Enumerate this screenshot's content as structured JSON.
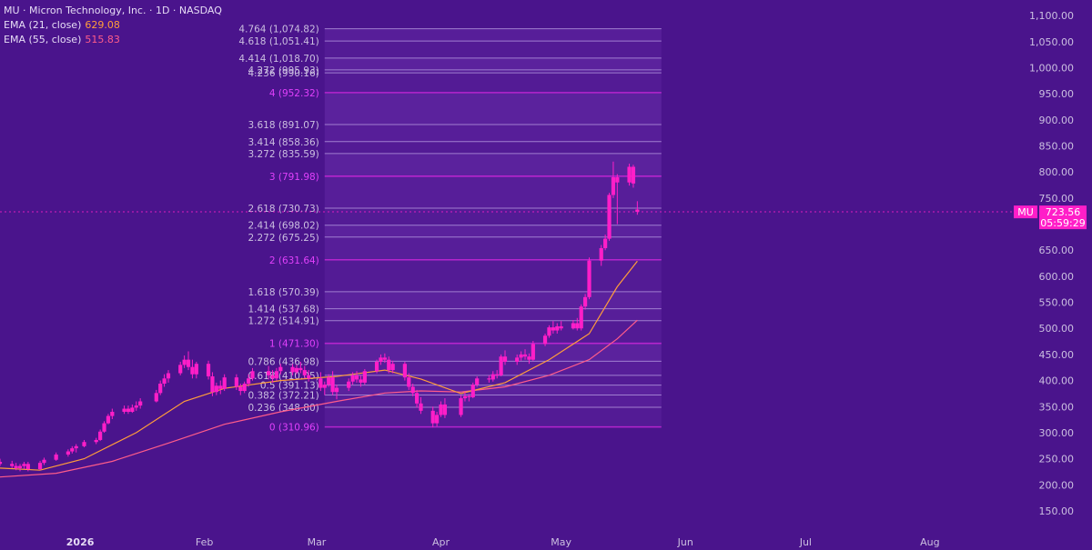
{
  "legend": {
    "symbol_line": "MU · Micron Technology, Inc. · 1D · NASDAQ",
    "ema21_label": "EMA (21, close)",
    "ema21_value": "629.08",
    "ema55_label": "EMA (55, close)",
    "ema55_value": "515.83"
  },
  "price_label": {
    "symbol": "MU",
    "price": "723.56",
    "countdown": "05:59:29"
  },
  "colors": {
    "background": "#4a148c",
    "candle": "#ff1ec8",
    "ema21": "#ff9d3b",
    "ema55": "#ff5c8a",
    "fib_line": "#a98ad6",
    "fib_key_line": "#c026d3",
    "fib_zone": "#6c2fae",
    "axis_text": "#cbbfe0"
  },
  "chart_data": {
    "type": "candlestick",
    "title": "MU · Micron Technology, Inc. · 1D · NASDAQ",
    "y_ticks": [
      150,
      200,
      250,
      300,
      350,
      400,
      450,
      500,
      550,
      600,
      650,
      700,
      750,
      800,
      850,
      900,
      950,
      1000,
      1050,
      1100
    ],
    "y_tick_labels": [
      "150.00",
      "200.00",
      "250.00",
      "300.00",
      "350.00",
      "400.00",
      "450.00",
      "500.00",
      "550.00",
      "600.00",
      "650.00",
      "700.00",
      "750.00",
      "800.00",
      "850.00",
      "900.00",
      "950.00",
      "1,000.00",
      "1,050.00",
      "1,100.00"
    ],
    "ylim": [
      115,
      1130
    ],
    "x_ticks": [
      {
        "label": "2026",
        "date": "2026-01-01",
        "bold": true
      },
      {
        "label": "Feb",
        "date": "2026-02-01",
        "bold": false
      },
      {
        "label": "Mar",
        "date": "2026-03-01",
        "bold": false
      },
      {
        "label": "Apr",
        "date": "2026-04-01",
        "bold": false
      },
      {
        "label": "May",
        "date": "2026-05-01",
        "bold": false
      },
      {
        "label": "Jun",
        "date": "2026-06-01",
        "bold": false
      },
      {
        "label": "Jul",
        "date": "2026-07-01",
        "bold": false
      },
      {
        "label": "Aug",
        "date": "2026-08-01",
        "bold": false
      }
    ],
    "xlim": [
      "2025-12-12",
      "2026-08-21"
    ],
    "last_price": 723.56,
    "fib": {
      "start_date": "2026-03-03",
      "end_date": "2026-05-26",
      "levels": [
        {
          "ratio": 0,
          "price": 310.96,
          "label": "0 (310.96)",
          "key": true
        },
        {
          "ratio": 0.236,
          "price": 348.8,
          "label": "0.236 (348.80)",
          "key": false
        },
        {
          "ratio": 0.382,
          "price": 372.21,
          "label": "0.382 (372.21)",
          "key": false
        },
        {
          "ratio": 0.5,
          "price": 391.13,
          "label": "0.5 (391.13)",
          "key": false
        },
        {
          "ratio": 0.618,
          "price": 410.05,
          "label": "0.618 (410.05)",
          "key": false
        },
        {
          "ratio": 0.786,
          "price": 436.98,
          "label": "0.786 (436.98)",
          "key": false
        },
        {
          "ratio": 1,
          "price": 471.3,
          "label": "1 (471.30)",
          "key": true
        },
        {
          "ratio": 1.272,
          "price": 514.91,
          "label": "1.272 (514.91)",
          "key": false
        },
        {
          "ratio": 1.414,
          "price": 537.68,
          "label": "1.414 (537.68)",
          "key": false
        },
        {
          "ratio": 1.618,
          "price": 570.39,
          "label": "1.618 (570.39)",
          "key": false
        },
        {
          "ratio": 2,
          "price": 631.64,
          "label": "2 (631.64)",
          "key": true
        },
        {
          "ratio": 2.272,
          "price": 675.25,
          "label": "2.272 (675.25)",
          "key": false
        },
        {
          "ratio": 2.414,
          "price": 698.02,
          "label": "2.414 (698.02)",
          "key": false
        },
        {
          "ratio": 2.618,
          "price": 730.73,
          "label": "2.618 (730.73)",
          "key": false
        },
        {
          "ratio": 3,
          "price": 791.98,
          "label": "3 (791.98)",
          "key": true
        },
        {
          "ratio": 3.272,
          "price": 835.59,
          "label": "3.272 (835.59)",
          "key": false
        },
        {
          "ratio": 3.414,
          "price": 858.36,
          "label": "3.414 (858.36)",
          "key": false
        },
        {
          "ratio": 3.618,
          "price": 891.07,
          "label": "3.618 (891.07)",
          "key": false
        },
        {
          "ratio": 4,
          "price": 952.32,
          "label": "4 (952.32)",
          "key": true
        },
        {
          "ratio": 4.236,
          "price": 990.16,
          "label": "4.236 (990.16)",
          "key": false
        },
        {
          "ratio": 4.272,
          "price": 995.93,
          "label": "4.272 (995.93)",
          "key": false
        },
        {
          "ratio": 4.414,
          "price": 1018.7,
          "label": "4.414 (1,018.70)",
          "key": false
        },
        {
          "ratio": 4.618,
          "price": 1051.41,
          "label": "4.618 (1,051.41)",
          "key": false
        },
        {
          "ratio": 4.764,
          "price": 1074.82,
          "label": "4.764 (1,074.82)",
          "key": false
        }
      ]
    },
    "candles": [
      {
        "d": "2025-12-12",
        "o": 244,
        "h": 250,
        "l": 236,
        "c": 240
      },
      {
        "d": "2025-12-15",
        "o": 240,
        "h": 246,
        "l": 232,
        "c": 236
      },
      {
        "d": "2025-12-16",
        "o": 236,
        "h": 242,
        "l": 228,
        "c": 232
      },
      {
        "d": "2025-12-17",
        "o": 232,
        "h": 240,
        "l": 226,
        "c": 236
      },
      {
        "d": "2025-12-18",
        "o": 236,
        "h": 244,
        "l": 230,
        "c": 240
      },
      {
        "d": "2025-12-19",
        "o": 240,
        "h": 244,
        "l": 226,
        "c": 230
      },
      {
        "d": "2025-12-22",
        "o": 230,
        "h": 246,
        "l": 228,
        "c": 242
      },
      {
        "d": "2025-12-23",
        "o": 242,
        "h": 252,
        "l": 238,
        "c": 248
      },
      {
        "d": "2025-12-26",
        "o": 248,
        "h": 262,
        "l": 246,
        "c": 258
      },
      {
        "d": "2025-12-29",
        "o": 258,
        "h": 268,
        "l": 254,
        "c": 264
      },
      {
        "d": "2025-12-30",
        "o": 264,
        "h": 274,
        "l": 260,
        "c": 270
      },
      {
        "d": "2025-12-31",
        "o": 270,
        "h": 278,
        "l": 262,
        "c": 274
      },
      {
        "d": "2026-01-02",
        "o": 274,
        "h": 286,
        "l": 272,
        "c": 282
      },
      {
        "d": "2026-01-05",
        "o": 282,
        "h": 290,
        "l": 278,
        "c": 286
      },
      {
        "d": "2026-01-06",
        "o": 286,
        "h": 306,
        "l": 284,
        "c": 302
      },
      {
        "d": "2026-01-07",
        "o": 302,
        "h": 322,
        "l": 300,
        "c": 318
      },
      {
        "d": "2026-01-08",
        "o": 318,
        "h": 336,
        "l": 316,
        "c": 332
      },
      {
        "d": "2026-01-09",
        "o": 332,
        "h": 346,
        "l": 326,
        "c": 340
      },
      {
        "d": "2026-01-12",
        "o": 340,
        "h": 352,
        "l": 336,
        "c": 346
      },
      {
        "d": "2026-01-13",
        "o": 346,
        "h": 352,
        "l": 336,
        "c": 340
      },
      {
        "d": "2026-01-14",
        "o": 340,
        "h": 354,
        "l": 338,
        "c": 348
      },
      {
        "d": "2026-01-15",
        "o": 348,
        "h": 360,
        "l": 342,
        "c": 352
      },
      {
        "d": "2026-01-16",
        "o": 352,
        "h": 366,
        "l": 346,
        "c": 360
      },
      {
        "d": "2026-01-20",
        "o": 360,
        "h": 382,
        "l": 358,
        "c": 376
      },
      {
        "d": "2026-01-21",
        "o": 376,
        "h": 400,
        "l": 372,
        "c": 394
      },
      {
        "d": "2026-01-22",
        "o": 394,
        "h": 412,
        "l": 388,
        "c": 404
      },
      {
        "d": "2026-01-23",
        "o": 404,
        "h": 420,
        "l": 396,
        "c": 414
      },
      {
        "d": "2026-01-26",
        "o": 414,
        "h": 436,
        "l": 410,
        "c": 430
      },
      {
        "d": "2026-01-27",
        "o": 430,
        "h": 448,
        "l": 424,
        "c": 440
      },
      {
        "d": "2026-01-28",
        "o": 440,
        "h": 456,
        "l": 420,
        "c": 426
      },
      {
        "d": "2026-01-29",
        "o": 426,
        "h": 440,
        "l": 404,
        "c": 412
      },
      {
        "d": "2026-01-30",
        "o": 412,
        "h": 436,
        "l": 404,
        "c": 432
      },
      {
        "d": "2026-02-02",
        "o": 432,
        "h": 438,
        "l": 402,
        "c": 408
      },
      {
        "d": "2026-02-03",
        "o": 408,
        "h": 416,
        "l": 370,
        "c": 378
      },
      {
        "d": "2026-02-04",
        "o": 378,
        "h": 396,
        "l": 372,
        "c": 390
      },
      {
        "d": "2026-02-05",
        "o": 390,
        "h": 400,
        "l": 374,
        "c": 384
      },
      {
        "d": "2026-02-06",
        "o": 384,
        "h": 412,
        "l": 380,
        "c": 406
      },
      {
        "d": "2026-02-09",
        "o": 406,
        "h": 412,
        "l": 382,
        "c": 388
      },
      {
        "d": "2026-02-10",
        "o": 388,
        "h": 394,
        "l": 372,
        "c": 380
      },
      {
        "d": "2026-02-11",
        "o": 380,
        "h": 398,
        "l": 376,
        "c": 394
      },
      {
        "d": "2026-02-12",
        "o": 394,
        "h": 412,
        "l": 388,
        "c": 404
      },
      {
        "d": "2026-02-13",
        "o": 404,
        "h": 424,
        "l": 400,
        "c": 418
      },
      {
        "d": "2026-02-17",
        "o": 418,
        "h": 428,
        "l": 402,
        "c": 410
      },
      {
        "d": "2026-02-18",
        "o": 410,
        "h": 420,
        "l": 396,
        "c": 404
      },
      {
        "d": "2026-02-19",
        "o": 404,
        "h": 424,
        "l": 400,
        "c": 418
      },
      {
        "d": "2026-02-20",
        "o": 418,
        "h": 432,
        "l": 412,
        "c": 426
      },
      {
        "d": "2026-02-23",
        "o": 426,
        "h": 432,
        "l": 410,
        "c": 416
      },
      {
        "d": "2026-02-24",
        "o": 416,
        "h": 430,
        "l": 412,
        "c": 424
      },
      {
        "d": "2026-02-25",
        "o": 424,
        "h": 436,
        "l": 414,
        "c": 420
      },
      {
        "d": "2026-02-26",
        "o": 420,
        "h": 428,
        "l": 404,
        "c": 410
      },
      {
        "d": "2026-02-27",
        "o": 410,
        "h": 420,
        "l": 398,
        "c": 404
      },
      {
        "d": "2026-03-02",
        "o": 404,
        "h": 416,
        "l": 380,
        "c": 386
      },
      {
        "d": "2026-03-03",
        "o": 386,
        "h": 398,
        "l": 372,
        "c": 392
      },
      {
        "d": "2026-03-04",
        "o": 392,
        "h": 412,
        "l": 388,
        "c": 406
      },
      {
        "d": "2026-03-05",
        "o": 406,
        "h": 418,
        "l": 372,
        "c": 378
      },
      {
        "d": "2026-03-06",
        "o": 378,
        "h": 392,
        "l": 364,
        "c": 386
      },
      {
        "d": "2026-03-09",
        "o": 386,
        "h": 404,
        "l": 380,
        "c": 398
      },
      {
        "d": "2026-03-10",
        "o": 398,
        "h": 416,
        "l": 392,
        "c": 410
      },
      {
        "d": "2026-03-11",
        "o": 410,
        "h": 418,
        "l": 396,
        "c": 402
      },
      {
        "d": "2026-03-12",
        "o": 402,
        "h": 410,
        "l": 388,
        "c": 396
      },
      {
        "d": "2026-03-13",
        "o": 396,
        "h": 422,
        "l": 392,
        "c": 418
      },
      {
        "d": "2026-03-16",
        "o": 418,
        "h": 440,
        "l": 414,
        "c": 436
      },
      {
        "d": "2026-03-17",
        "o": 436,
        "h": 450,
        "l": 430,
        "c": 444
      },
      {
        "d": "2026-03-18",
        "o": 444,
        "h": 452,
        "l": 434,
        "c": 440
      },
      {
        "d": "2026-03-19",
        "o": 440,
        "h": 446,
        "l": 414,
        "c": 420
      },
      {
        "d": "2026-03-20",
        "o": 420,
        "h": 438,
        "l": 414,
        "c": 432
      },
      {
        "d": "2026-03-23",
        "o": 432,
        "h": 436,
        "l": 400,
        "c": 406
      },
      {
        "d": "2026-03-24",
        "o": 406,
        "h": 414,
        "l": 382,
        "c": 388
      },
      {
        "d": "2026-03-25",
        "o": 388,
        "h": 394,
        "l": 370,
        "c": 376
      },
      {
        "d": "2026-03-26",
        "o": 376,
        "h": 382,
        "l": 348,
        "c": 356
      },
      {
        "d": "2026-03-27",
        "o": 356,
        "h": 368,
        "l": 336,
        "c": 342
      },
      {
        "d": "2026-03-30",
        "o": 342,
        "h": 350,
        "l": 310,
        "c": 318
      },
      {
        "d": "2026-03-31",
        "o": 318,
        "h": 340,
        "l": 312,
        "c": 334
      },
      {
        "d": "2026-04-01",
        "o": 334,
        "h": 360,
        "l": 330,
        "c": 354
      },
      {
        "d": "2026-04-02",
        "o": 354,
        "h": 366,
        "l": 328,
        "c": 334
      },
      {
        "d": "2026-04-06",
        "o": 334,
        "h": 372,
        "l": 330,
        "c": 366
      },
      {
        "d": "2026-04-07",
        "o": 366,
        "h": 378,
        "l": 360,
        "c": 370
      },
      {
        "d": "2026-04-08",
        "o": 370,
        "h": 374,
        "l": 360,
        "c": 368
      },
      {
        "d": "2026-04-09",
        "o": 368,
        "h": 396,
        "l": 366,
        "c": 392
      },
      {
        "d": "2026-04-10",
        "o": 392,
        "h": 408,
        "l": 388,
        "c": 404
      },
      {
        "d": "2026-04-13",
        "o": 404,
        "h": 410,
        "l": 396,
        "c": 402
      },
      {
        "d": "2026-04-14",
        "o": 402,
        "h": 418,
        "l": 398,
        "c": 412
      },
      {
        "d": "2026-04-15",
        "o": 412,
        "h": 420,
        "l": 404,
        "c": 410
      },
      {
        "d": "2026-04-16",
        "o": 410,
        "h": 450,
        "l": 408,
        "c": 446
      },
      {
        "d": "2026-04-17",
        "o": 446,
        "h": 458,
        "l": 430,
        "c": 436
      },
      {
        "d": "2026-04-20",
        "o": 436,
        "h": 450,
        "l": 430,
        "c": 444
      },
      {
        "d": "2026-04-21",
        "o": 444,
        "h": 456,
        "l": 438,
        "c": 450
      },
      {
        "d": "2026-04-22",
        "o": 450,
        "h": 460,
        "l": 440,
        "c": 446
      },
      {
        "d": "2026-04-23",
        "o": 446,
        "h": 452,
        "l": 432,
        "c": 440
      },
      {
        "d": "2026-04-24",
        "o": 440,
        "h": 476,
        "l": 438,
        "c": 470
      },
      {
        "d": "2026-04-27",
        "o": 470,
        "h": 490,
        "l": 466,
        "c": 486
      },
      {
        "d": "2026-04-28",
        "o": 486,
        "h": 506,
        "l": 482,
        "c": 502
      },
      {
        "d": "2026-04-29",
        "o": 502,
        "h": 514,
        "l": 490,
        "c": 496
      },
      {
        "d": "2026-04-30",
        "o": 496,
        "h": 510,
        "l": 490,
        "c": 504
      },
      {
        "d": "2026-05-01",
        "o": 504,
        "h": 514,
        "l": 496,
        "c": 500
      },
      {
        "d": "2026-05-04",
        "o": 500,
        "h": 516,
        "l": 498,
        "c": 510
      },
      {
        "d": "2026-05-05",
        "o": 510,
        "h": 520,
        "l": 496,
        "c": 500
      },
      {
        "d": "2026-05-06",
        "o": 500,
        "h": 546,
        "l": 496,
        "c": 542
      },
      {
        "d": "2026-05-07",
        "o": 542,
        "h": 566,
        "l": 536,
        "c": 560
      },
      {
        "d": "2026-05-08",
        "o": 560,
        "h": 636,
        "l": 556,
        "c": 630
      },
      {
        "d": "2026-05-11",
        "o": 630,
        "h": 660,
        "l": 620,
        "c": 654
      },
      {
        "d": "2026-05-12",
        "o": 654,
        "h": 680,
        "l": 650,
        "c": 672
      },
      {
        "d": "2026-05-13",
        "o": 672,
        "h": 760,
        "l": 668,
        "c": 756
      },
      {
        "d": "2026-05-14",
        "o": 756,
        "h": 820,
        "l": 750,
        "c": 790
      },
      {
        "d": "2026-05-15",
        "o": 790,
        "h": 796,
        "l": 700,
        "c": 780
      },
      {
        "d": "2026-05-18",
        "o": 780,
        "h": 816,
        "l": 774,
        "c": 810
      },
      {
        "d": "2026-05-19",
        "o": 810,
        "h": 814,
        "l": 770,
        "c": 778
      },
      {
        "d": "2026-05-20",
        "o": 728,
        "h": 744,
        "l": 718,
        "c": 723.56
      }
    ],
    "ema21_points": [
      {
        "d": "2025-12-12",
        "v": 232
      },
      {
        "d": "2025-12-22",
        "v": 228
      },
      {
        "d": "2026-01-02",
        "v": 250
      },
      {
        "d": "2026-01-15",
        "v": 300
      },
      {
        "d": "2026-01-27",
        "v": 360
      },
      {
        "d": "2026-02-06",
        "v": 385
      },
      {
        "d": "2026-02-20",
        "v": 400
      },
      {
        "d": "2026-03-06",
        "v": 408
      },
      {
        "d": "2026-03-18",
        "v": 420
      },
      {
        "d": "2026-03-27",
        "v": 403
      },
      {
        "d": "2026-04-06",
        "v": 375
      },
      {
        "d": "2026-04-17",
        "v": 396
      },
      {
        "d": "2026-04-28",
        "v": 440
      },
      {
        "d": "2026-05-08",
        "v": 490
      },
      {
        "d": "2026-05-15",
        "v": 580
      },
      {
        "d": "2026-05-20",
        "v": 629.08
      }
    ],
    "ema55_points": [
      {
        "d": "2025-12-12",
        "v": 215
      },
      {
        "d": "2025-12-26",
        "v": 222
      },
      {
        "d": "2026-01-09",
        "v": 245
      },
      {
        "d": "2026-01-23",
        "v": 280
      },
      {
        "d": "2026-02-06",
        "v": 316
      },
      {
        "d": "2026-02-20",
        "v": 340
      },
      {
        "d": "2026-03-06",
        "v": 360
      },
      {
        "d": "2026-03-18",
        "v": 376
      },
      {
        "d": "2026-03-27",
        "v": 380
      },
      {
        "d": "2026-04-06",
        "v": 378
      },
      {
        "d": "2026-04-17",
        "v": 388
      },
      {
        "d": "2026-04-28",
        "v": 410
      },
      {
        "d": "2026-05-08",
        "v": 440
      },
      {
        "d": "2026-05-15",
        "v": 480
      },
      {
        "d": "2026-05-20",
        "v": 515.83
      }
    ]
  }
}
